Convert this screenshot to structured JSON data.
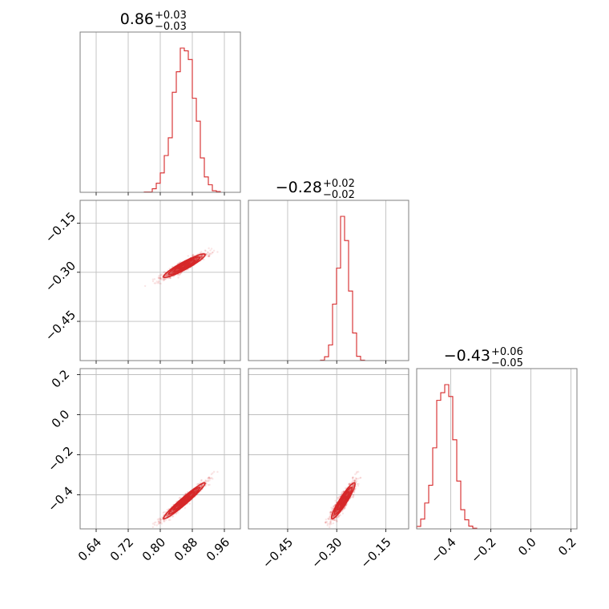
{
  "chart_data": {
    "type": "corner",
    "color": "#d62728",
    "parameters": [
      {
        "title_median": "0.86",
        "title_plus": "+0.03",
        "title_minus": "−0.03",
        "range": [
          0.6,
          1.0
        ],
        "ticks": [
          0.64,
          0.72,
          0.8,
          0.88,
          0.96
        ],
        "tick_labels": [
          "0.64",
          "0.72",
          "0.80",
          "0.88",
          "0.96"
        ],
        "median": 0.86,
        "sigma": 0.026
      },
      {
        "title_median": "−0.28",
        "title_plus": "+0.02",
        "title_minus": "−0.02",
        "range": [
          -0.57,
          -0.08
        ],
        "ticks": [
          -0.45,
          -0.3,
          -0.15
        ],
        "tick_labels": [
          "−0.45",
          "−0.30",
          "−0.15"
        ],
        "median": -0.28,
        "sigma": 0.018
      },
      {
        "title_median": "−0.43",
        "title_plus": "+0.06",
        "title_minus": "−0.05",
        "range": [
          -0.57,
          0.23
        ],
        "ticks": [
          -0.4,
          -0.2,
          0.0,
          0.2
        ],
        "tick_labels": [
          "−0.4",
          "−0.2",
          "0.0",
          "0.2"
        ],
        "median": -0.43,
        "sigma": 0.045
      }
    ],
    "correlations": [
      [
        1,
        0.93,
        0.97
      ],
      [
        0.93,
        1,
        0.93
      ],
      [
        0.97,
        0.93,
        1
      ]
    ],
    "grid": true
  }
}
